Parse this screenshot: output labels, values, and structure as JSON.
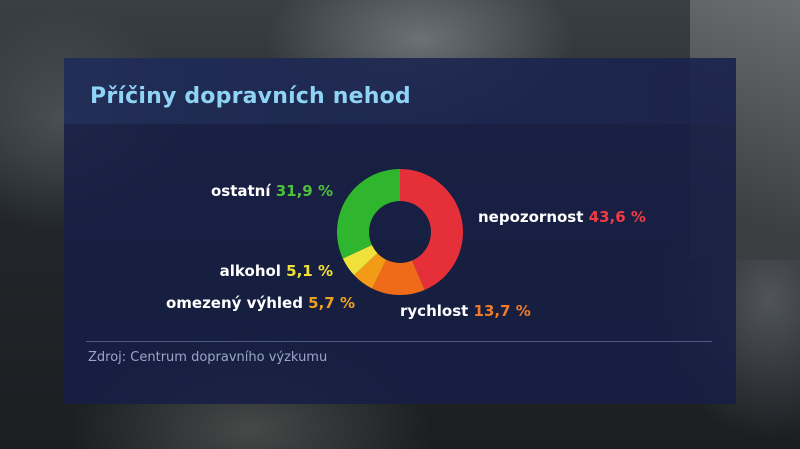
{
  "title": "Příčiny dopravních nehod",
  "source": "Zdroj: Centrum dopravního výzkumu",
  "chart_data": {
    "type": "pie",
    "subtype": "donut",
    "unit": "%",
    "slices": [
      {
        "name": "nepozornost",
        "value": 43.6,
        "value_label": "43,6 %",
        "color": "#e5303a",
        "text_color": "#f03a44"
      },
      {
        "name": "rychlost",
        "value": 13.7,
        "value_label": "13,7 %",
        "color": "#ef6b1a",
        "text_color": "#f07a2a"
      },
      {
        "name": "omezený výhled",
        "value": 5.7,
        "value_label": "5,7 %",
        "color": "#f39a17",
        "text_color": "#f0a020"
      },
      {
        "name": "alkohol",
        "value": 5.1,
        "value_label": "5,1 %",
        "color": "#f0e23a",
        "text_color": "#f2e03a"
      },
      {
        "name": "ostatní",
        "value": 31.9,
        "value_label": "31,9 %",
        "color": "#2fb62e",
        "text_color": "#4cc23a"
      }
    ]
  }
}
